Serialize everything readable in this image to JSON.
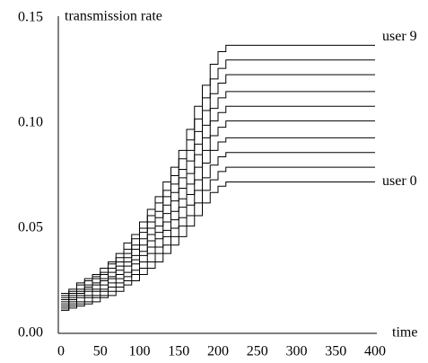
{
  "chart_data": {
    "type": "step-line",
    "y_label": "transmission rate",
    "x_label": "time",
    "x": [
      0,
      10,
      20,
      30,
      40,
      50,
      60,
      70,
      80,
      90,
      100,
      110,
      120,
      130,
      140,
      150,
      160,
      170,
      180,
      190,
      200,
      210,
      220,
      400
    ],
    "xlim": [
      0,
      400
    ],
    "xticks": [
      0,
      50,
      100,
      150,
      200,
      250,
      300,
      350,
      400
    ],
    "ylim": [
      0,
      0.15
    ],
    "yticks": [
      {
        "value": 0,
        "label": "0.00"
      },
      0.05,
      {
        "value": 0.1,
        "label": "0.10"
      },
      0.15
    ],
    "series": [
      {
        "name": "user 0",
        "color": "#000000",
        "values": [
          0.011,
          0.012,
          0.013,
          0.014,
          0.015,
          0.017,
          0.018,
          0.02,
          0.023,
          0.025,
          0.028,
          0.031,
          0.034,
          0.038,
          0.042,
          0.046,
          0.051,
          0.056,
          0.062,
          0.067,
          0.07,
          0.072,
          0.072,
          0.072
        ]
      },
      {
        "color": "#000000",
        "values": [
          0.011,
          0.013,
          0.014,
          0.015,
          0.017,
          0.018,
          0.02,
          0.022,
          0.025,
          0.028,
          0.031,
          0.034,
          0.038,
          0.042,
          0.046,
          0.051,
          0.056,
          0.062,
          0.068,
          0.073,
          0.077,
          0.079,
          0.079,
          0.079
        ]
      },
      {
        "color": "#000000",
        "values": [
          0.012,
          0.014,
          0.015,
          0.017,
          0.018,
          0.02,
          0.022,
          0.024,
          0.027,
          0.03,
          0.034,
          0.038,
          0.041,
          0.046,
          0.05,
          0.055,
          0.061,
          0.068,
          0.074,
          0.08,
          0.084,
          0.086,
          0.086,
          0.086
        ]
      },
      {
        "color": "#000000",
        "values": [
          0.013,
          0.015,
          0.017,
          0.018,
          0.02,
          0.021,
          0.024,
          0.026,
          0.029,
          0.033,
          0.037,
          0.041,
          0.045,
          0.049,
          0.054,
          0.06,
          0.066,
          0.073,
          0.081,
          0.087,
          0.091,
          0.093,
          0.093,
          0.093
        ]
      },
      {
        "color": "#000000",
        "values": [
          0.014,
          0.016,
          0.018,
          0.02,
          0.021,
          0.023,
          0.026,
          0.028,
          0.032,
          0.035,
          0.039,
          0.044,
          0.048,
          0.053,
          0.058,
          0.064,
          0.071,
          0.079,
          0.087,
          0.094,
          0.098,
          0.101,
          0.101,
          0.101
        ]
      },
      {
        "color": "#000000",
        "values": [
          0.015,
          0.017,
          0.019,
          0.021,
          0.023,
          0.025,
          0.027,
          0.03,
          0.034,
          0.037,
          0.042,
          0.047,
          0.051,
          0.057,
          0.063,
          0.069,
          0.076,
          0.085,
          0.093,
          0.101,
          0.105,
          0.108,
          0.108,
          0.108
        ]
      },
      {
        "color": "#000000",
        "values": [
          0.016,
          0.018,
          0.02,
          0.022,
          0.024,
          0.026,
          0.029,
          0.032,
          0.036,
          0.04,
          0.045,
          0.05,
          0.055,
          0.061,
          0.067,
          0.074,
          0.082,
          0.09,
          0.099,
          0.107,
          0.112,
          0.115,
          0.115,
          0.115
        ]
      },
      {
        "color": "#000000",
        "values": [
          0.017,
          0.019,
          0.021,
          0.023,
          0.026,
          0.028,
          0.031,
          0.034,
          0.038,
          0.042,
          0.048,
          0.053,
          0.058,
          0.065,
          0.071,
          0.078,
          0.087,
          0.096,
          0.106,
          0.114,
          0.119,
          0.123,
          0.123,
          0.123
        ]
      },
      {
        "color": "#000000",
        "values": [
          0.018,
          0.02,
          0.023,
          0.025,
          0.027,
          0.029,
          0.033,
          0.036,
          0.04,
          0.045,
          0.05,
          0.056,
          0.062,
          0.068,
          0.075,
          0.083,
          0.092,
          0.102,
          0.112,
          0.121,
          0.126,
          0.13,
          0.13,
          0.13
        ]
      },
      {
        "name": "user 9",
        "color": "#000000",
        "values": [
          0.019,
          0.021,
          0.024,
          0.026,
          0.028,
          0.031,
          0.034,
          0.038,
          0.043,
          0.047,
          0.053,
          0.059,
          0.065,
          0.072,
          0.079,
          0.087,
          0.097,
          0.108,
          0.118,
          0.128,
          0.134,
          0.137,
          0.137,
          0.137
        ]
      }
    ]
  }
}
